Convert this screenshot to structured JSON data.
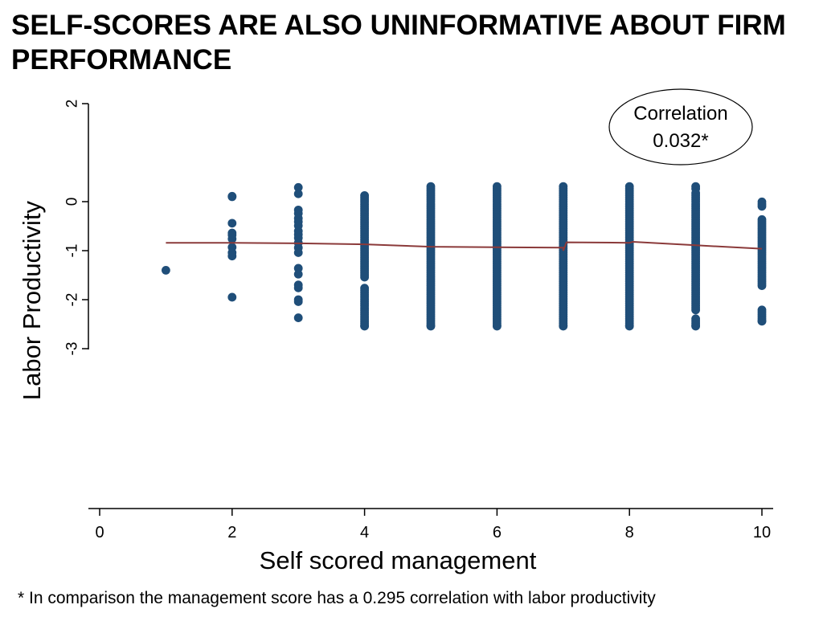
{
  "slide": {
    "title": "SELF-SCORES ARE ALSO UNINFORMATIVE ABOUT FIRM PERFORMANCE",
    "footnote": "* In comparison the management score has a 0.295 correlation with labor productivity"
  },
  "chart_data": {
    "type": "scatter",
    "xlabel": "Self scored management",
    "ylabel": "Labor Productivity",
    "xlim": [
      0,
      10
    ],
    "ylim": [
      -3,
      2
    ],
    "x_ticks": [
      0,
      2,
      4,
      6,
      8,
      10
    ],
    "y_ticks": [
      2,
      0,
      -1,
      -2,
      -3
    ],
    "y_tick_labels": [
      "2",
      "0",
      "-1",
      "-2",
      "-3"
    ],
    "grid": false,
    "legend": "none",
    "annotation": {
      "line1": "Correlation",
      "line2": "0.032*"
    },
    "colors": {
      "points": "#1f4e79",
      "trend": "#8b3a3a",
      "axis": "#000000"
    },
    "series": [
      {
        "type": "scatter",
        "points": [
          [
            1,
            -1.4
          ],
          [
            2,
            0.1
          ],
          [
            2,
            0.11
          ],
          [
            2,
            -0.44
          ],
          [
            2,
            -0.64
          ],
          [
            2,
            -0.68
          ],
          [
            2,
            -0.76
          ],
          [
            2,
            -0.93
          ],
          [
            2,
            -1.04
          ],
          [
            2,
            -1.11
          ],
          [
            2,
            -1.95
          ],
          [
            3,
            0.29
          ],
          [
            3,
            0.16
          ],
          [
            3,
            -0.17
          ],
          [
            3,
            -0.24
          ],
          [
            3,
            -0.34
          ],
          [
            3,
            -0.41
          ],
          [
            3,
            -0.49
          ],
          [
            3,
            -0.6
          ],
          [
            3,
            -0.67
          ],
          [
            3,
            -0.74
          ],
          [
            3,
            -0.84
          ],
          [
            3,
            -0.94
          ],
          [
            3,
            -1.04
          ],
          [
            3,
            -1.36
          ],
          [
            3,
            -1.48
          ],
          [
            3,
            -1.7
          ],
          [
            3,
            -1.76
          ],
          [
            3,
            -2.0
          ],
          [
            3,
            -2.04
          ],
          [
            3,
            -2.37
          ]
        ]
      },
      {
        "type": "vertical_dense_columns",
        "columns": [
          {
            "x": 4,
            "from": -2.54,
            "to": 0.26,
            "gaps": [
              [
                0.16,
                0.26
              ],
              [
                -1.55,
                -1.73
              ]
            ]
          },
          {
            "x": 5,
            "from": -2.54,
            "to": 0.31
          },
          {
            "x": 6,
            "from": -2.54,
            "to": 0.31
          },
          {
            "x": 7,
            "from": -2.54,
            "to": 0.31
          },
          {
            "x": 8,
            "from": -2.54,
            "to": 0.31
          },
          {
            "x": 9,
            "from": -2.54,
            "to": 0.31,
            "gaps": [
              [
                0.26,
                0.18
              ],
              [
                -2.21,
                -2.38
              ]
            ]
          },
          {
            "x": 10,
            "from": -2.44,
            "to": 0.22,
            "gaps": [
              [
                0.22,
                0.02
              ],
              [
                -0.12,
                -0.36
              ],
              [
                -1.72,
                -2.2
              ]
            ]
          }
        ]
      },
      {
        "type": "line",
        "points": [
          [
            1,
            -0.84
          ],
          [
            2,
            -0.84
          ],
          [
            3,
            -0.85
          ],
          [
            4,
            -0.87
          ],
          [
            5,
            -0.92
          ],
          [
            6,
            -0.93
          ],
          [
            7,
            -0.94
          ],
          [
            7,
            -1.0
          ],
          [
            7.05,
            -0.83
          ],
          [
            8,
            -0.84
          ],
          [
            8.05,
            -0.82
          ],
          [
            9,
            -0.89
          ],
          [
            10,
            -0.96
          ]
        ]
      }
    ]
  }
}
